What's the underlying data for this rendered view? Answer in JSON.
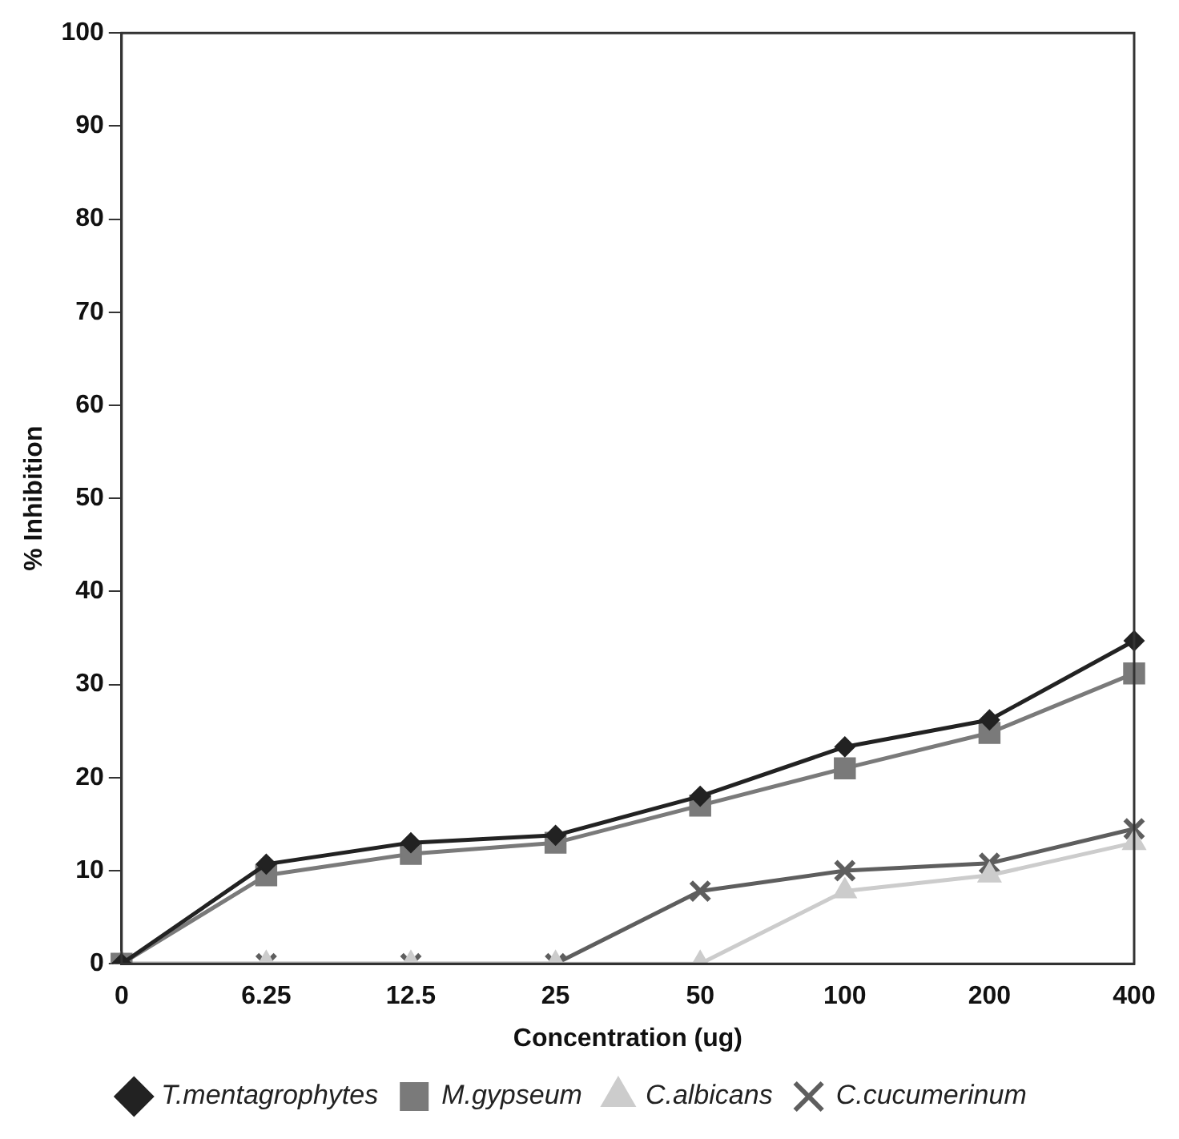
{
  "chart_data": {
    "type": "line",
    "xlabel": "Concentration (ug)",
    "ylabel": "% Inhibition",
    "categories": [
      "0",
      "6.25",
      "12.5",
      "25",
      "50",
      "100",
      "200",
      "400"
    ],
    "ylim": [
      0,
      100
    ],
    "yticks": [
      0,
      10,
      20,
      30,
      40,
      50,
      60,
      70,
      80,
      90,
      100
    ],
    "grid": false,
    "legend": "bottom",
    "line_style": "solid",
    "series": [
      {
        "name": "T.mentagrophytes",
        "color": "#222222",
        "marker": "diamond",
        "values": [
          0,
          10.7,
          13,
          13.8,
          18,
          23.3,
          26.2,
          34.7
        ]
      },
      {
        "name": "M.gypseum",
        "color": "#7a7a7a",
        "marker": "square",
        "values": [
          0,
          9.5,
          11.8,
          13,
          17,
          21,
          24.8,
          31.2
        ]
      },
      {
        "name": "C.albicans",
        "color": "#cccccc",
        "marker": "triangle",
        "values": [
          0,
          0,
          0,
          0,
          0,
          7.8,
          9.5,
          13
        ]
      },
      {
        "name": "C.cucumerinum",
        "color": "#5e5e5e",
        "marker": "cross",
        "values": [
          0,
          0,
          0,
          0,
          7.8,
          10,
          10.8,
          14.5
        ]
      }
    ]
  }
}
